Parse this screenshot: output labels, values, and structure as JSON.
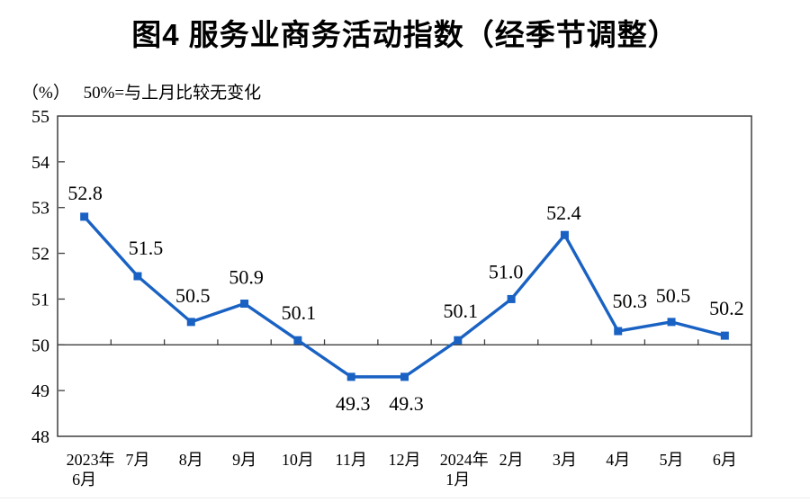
{
  "chart_data": {
    "type": "line",
    "title": "图4  服务业商务活动指数（经季节调整）",
    "unit_label": "（%）",
    "note": "50%=与上月比较无变化",
    "categories": [
      "2023年\n6月",
      "7月",
      "8月",
      "9月",
      "10月",
      "11月",
      "12月",
      "2024年\n1月",
      "2月",
      "3月",
      "4月",
      "5月",
      "6月"
    ],
    "series": [
      {
        "name": "服务业商务活动指数",
        "values": [
          52.8,
          51.5,
          50.5,
          50.9,
          50.1,
          49.3,
          49.3,
          50.1,
          51.0,
          52.4,
          50.3,
          50.5,
          50.2
        ]
      }
    ],
    "data_labels": true,
    "xlabel": "",
    "ylabel": "%",
    "ylim": [
      48,
      55
    ],
    "ytick_step": 1,
    "yticks": [
      48,
      49,
      50,
      51,
      52,
      53,
      54,
      55
    ],
    "reference_line": 50,
    "grid": false,
    "legend": "none",
    "marker": "square",
    "colors": {
      "line": "#1962C3",
      "axis": "#3F3F3F",
      "text": "#000000",
      "background": "#FFFFFF"
    }
  }
}
